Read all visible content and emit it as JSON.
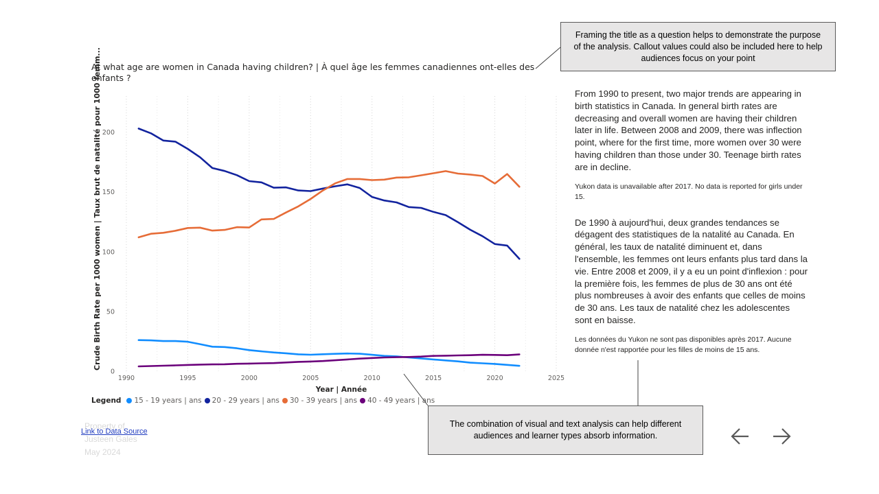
{
  "title": "At what age are women in Canada having children? | À quel âge les femmes canadiennes ont-elles des enfants ?",
  "legend": {
    "title": "Legend",
    "items": [
      {
        "label": "15 - 19 years | ans",
        "color": "#118dff"
      },
      {
        "label": "20 - 29 years | ans",
        "color": "#12239e"
      },
      {
        "label": "30 - 39 years | ans",
        "color": "#e66c37"
      },
      {
        "label": "40 - 49 years | ans",
        "color": "#6b007b"
      }
    ]
  },
  "callouts": {
    "top": "Framing the title as a question helps to demonstrate the purpose of the analysis. Callout values could also be included here to help audiences focus on your point",
    "bottom": "The combination of visual and text analysis can help different audiences and learner types absorb information."
  },
  "analysis": {
    "en_main": "From 1990 to present, two major trends are appearing in birth statistics in Canada. In general birth rates are decreasing and overall women are having their children later in life. Between 2008 and 2009, there was inflection point, where for the first time, more women over 30 were having children than those under 30. Teenage birth rates are in decline.",
    "en_note": "Yukon data is unavailable after 2017. No data is reported for girls under 15.",
    "fr_main": " De 1990 à aujourd'hui, deux grandes tendances se dégagent des statistiques de la natalité au Canada. En général, les taux de natalité diminuent et, dans l'ensemble, les femmes ont leurs enfants plus tard dans la vie. Entre 2008 et 2009, il y a eu un point d'inflexion : pour la première fois, les femmes de plus de 30 ans ont été plus nombreuses à avoir des enfants que celles de moins de 30 ans. Les taux de natalité chez les adolescentes sont en baisse.",
    "fr_note": "Les données du Yukon ne sont pas disponibles après 2017. Aucune donnée n'est rapportée pour les filles de moins de 15 ans."
  },
  "footer": {
    "watermark_lines": [
      "Property of",
      "Justeen Gales",
      "May 2024"
    ],
    "link_label": "Link to Data Source"
  },
  "nav": {
    "prev_icon": "arrow-left-icon",
    "next_icon": "arrow-right-icon"
  },
  "chart_data": {
    "type": "line",
    "title": "At what age are women in Canada having children? | À quel âge les femmes canadiennes ont-elles des enfants ?",
    "xlabel": "Year | Année",
    "ylabel": "Crude Birth Rate per 1000 women | Taux brut de natalité pour 1000 femm...",
    "xlim": [
      1990,
      2025
    ],
    "ylim": [
      0,
      230
    ],
    "x_ticks": [
      1990,
      1995,
      2000,
      2005,
      2010,
      2015,
      2020,
      2025
    ],
    "y_ticks": [
      0,
      50,
      100,
      150,
      200
    ],
    "grid": "vertical dotted",
    "legend_position": "bottom-left",
    "x": [
      1991,
      1992,
      1993,
      1994,
      1995,
      1996,
      1997,
      1998,
      1999,
      2000,
      2001,
      2002,
      2003,
      2004,
      2005,
      2006,
      2007,
      2008,
      2009,
      2010,
      2011,
      2012,
      2013,
      2014,
      2015,
      2016,
      2017,
      2018,
      2019,
      2020,
      2021,
      2022
    ],
    "series": [
      {
        "name": "15 - 19 years | ans",
        "color": "#118dff",
        "values": [
          26,
          25.8,
          25.2,
          25.2,
          24.6,
          22.6,
          20.5,
          20.2,
          19.2,
          17.6,
          16.6,
          15.7,
          15,
          14.1,
          13.8,
          14.2,
          14.5,
          14.8,
          14.6,
          13.7,
          12.8,
          12.4,
          11.5,
          10.7,
          9.8,
          9,
          8.2,
          7.1,
          6.6,
          6.1,
          5.3,
          4.5
        ]
      },
      {
        "name": "20 - 29 years | ans",
        "color": "#12239e",
        "values": [
          203,
          199,
          193,
          192,
          186,
          179,
          170,
          167.5,
          164,
          159,
          158,
          153.5,
          153.8,
          151.2,
          150.7,
          152.8,
          154.7,
          156.3,
          153.3,
          145.8,
          142.8,
          141.2,
          137.3,
          136.6,
          133.3,
          130.6,
          124.6,
          118.3,
          112.9,
          106.4,
          105.1,
          94
        ]
      },
      {
        "name": "30 - 39 years | ans",
        "color": "#e66c37",
        "values": [
          112,
          115,
          115.8,
          117.5,
          119.8,
          120.1,
          117.6,
          118.2,
          120.5,
          120.2,
          127,
          127.4,
          132.8,
          137.9,
          144.1,
          151.2,
          157.2,
          160.8,
          160.8,
          159.9,
          160.3,
          162,
          162.2,
          163.9,
          165.6,
          167.4,
          165.3,
          164.5,
          163.3,
          157,
          165,
          154.3
        ]
      },
      {
        "name": "40 - 49 years | ans",
        "color": "#6b007b",
        "values": [
          4,
          4.3,
          4.6,
          4.9,
          5.2,
          5.5,
          5.7,
          5.8,
          6.2,
          6.4,
          6.6,
          6.8,
          7.3,
          7.8,
          8.1,
          8.5,
          9.1,
          9.8,
          10.5,
          11,
          11.5,
          11.7,
          11.9,
          12.2,
          12.8,
          13,
          13.2,
          13.4,
          13.7,
          13.6,
          13.4,
          14
        ]
      }
    ]
  }
}
